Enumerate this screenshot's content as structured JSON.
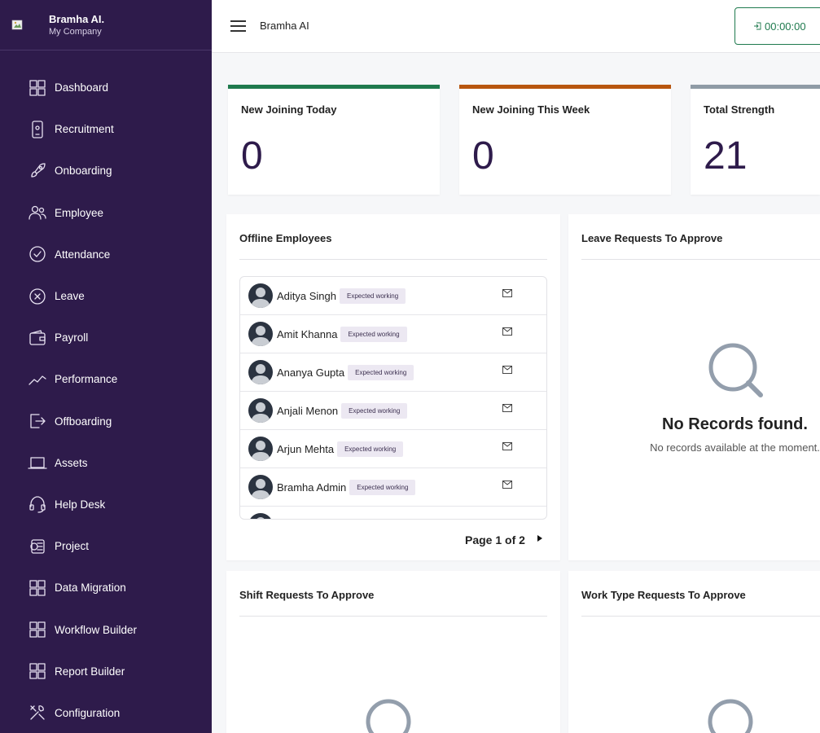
{
  "brand": {
    "name": "Bramha AI.",
    "company": "My Company"
  },
  "nav": [
    {
      "label": "Dashboard",
      "icon": "dashboard-icon"
    },
    {
      "label": "Recruitment",
      "icon": "phone-icon"
    },
    {
      "label": "Onboarding",
      "icon": "rocket-icon"
    },
    {
      "label": "Employee",
      "icon": "users-icon"
    },
    {
      "label": "Attendance",
      "icon": "check-circle-icon"
    },
    {
      "label": "Leave",
      "icon": "x-circle-icon"
    },
    {
      "label": "Payroll",
      "icon": "wallet-icon"
    },
    {
      "label": "Performance",
      "icon": "trend-icon"
    },
    {
      "label": "Offboarding",
      "icon": "exit-icon"
    },
    {
      "label": "Assets",
      "icon": "laptop-icon"
    },
    {
      "label": "Help Desk",
      "icon": "headset-icon"
    },
    {
      "label": "Project",
      "icon": "project-icon"
    },
    {
      "label": "Data Migration",
      "icon": "grid-icon"
    },
    {
      "label": "Workflow Builder",
      "icon": "grid-icon"
    },
    {
      "label": "Report Builder",
      "icon": "grid-icon"
    },
    {
      "label": "Configuration",
      "icon": "tools-icon"
    }
  ],
  "header": {
    "title": "Bramha AI",
    "timer": "00:00:00"
  },
  "stats": [
    {
      "title": "New Joining Today",
      "value": "0",
      "color": "#1f7a4e"
    },
    {
      "title": "New Joining This Week",
      "value": "0",
      "color": "#b8560f"
    },
    {
      "title": "Total Strength",
      "value": "21",
      "color": "#8f9ba6"
    }
  ],
  "offline": {
    "title": "Offline Employees",
    "employees": [
      {
        "name": "Aditya Singh",
        "status": "Expected working"
      },
      {
        "name": "Amit Khanna",
        "status": "Expected working"
      },
      {
        "name": "Ananya Gupta",
        "status": "Expected working"
      },
      {
        "name": "Anjali Menon",
        "status": "Expected working"
      },
      {
        "name": "Arjun Mehta",
        "status": "Expected working"
      },
      {
        "name": "Bramha Admin",
        "status": "Expected working"
      }
    ],
    "pager": "Page 1 of 2"
  },
  "leave": {
    "title": "Leave Requests To Approve",
    "empty_title": "No Records found.",
    "empty_sub": "No records available at the moment."
  },
  "shift": {
    "title": "Shift Requests To Approve"
  },
  "worktype": {
    "title": "Work Type Requests To Approve"
  }
}
